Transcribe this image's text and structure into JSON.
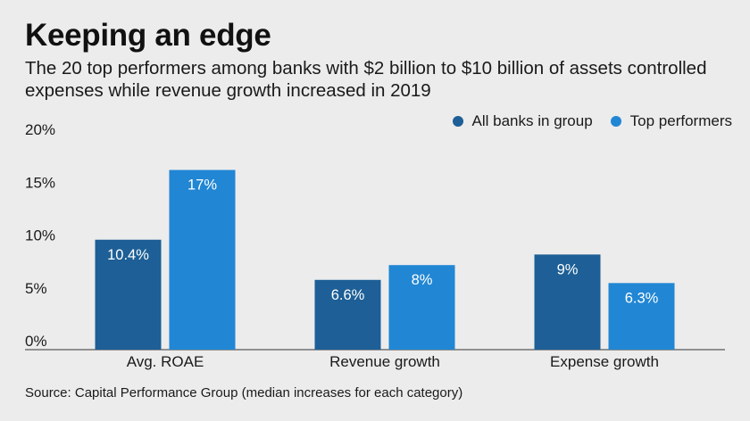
{
  "title": "Keeping an edge",
  "subtitle": "The 20 top performers among banks with $2 billion to $10 billion of assets controlled expenses while revenue growth increased in 2019",
  "source": "Source: Capital Performance Group (median increases for each category)",
  "colors": {
    "background": "#ececec",
    "all_banks": "#1d5f96",
    "top_performers": "#2186d4",
    "label_text": "#ffffff",
    "axis_text": "#1a1a1a"
  },
  "chart_data": {
    "type": "bar",
    "categories": [
      "Avg. ROAE",
      "Revenue growth",
      "Expense growth"
    ],
    "series": [
      {
        "name": "All banks in group",
        "values": [
          10.4,
          6.6,
          9
        ],
        "labels": [
          "10.4%",
          "6.6%",
          "9%"
        ]
      },
      {
        "name": "Top performers",
        "values": [
          17,
          8,
          6.3
        ],
        "labels": [
          "17%",
          "8%",
          "6.3%"
        ]
      }
    ],
    "ylim": [
      0,
      20
    ],
    "yticks": [
      "0%",
      "5%",
      "10%",
      "15%",
      "20%"
    ],
    "legend": "top-right",
    "grid": false
  }
}
